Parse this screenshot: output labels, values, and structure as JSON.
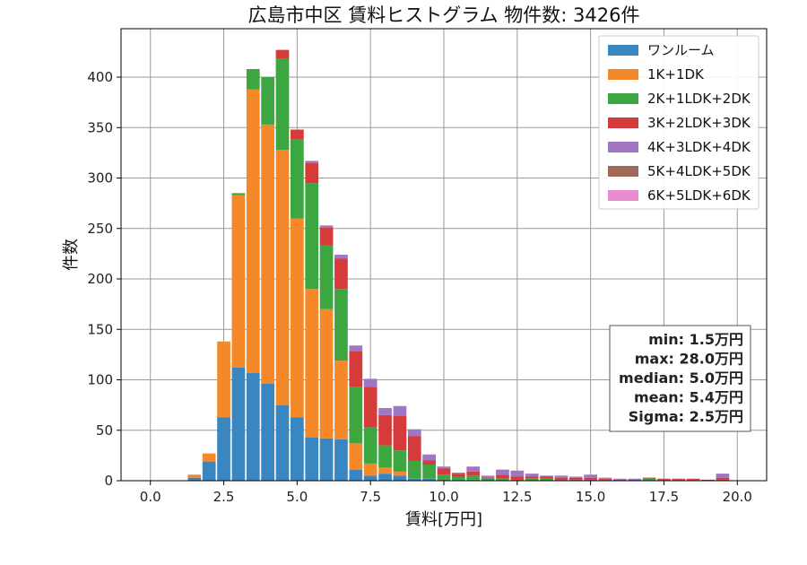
{
  "chart_data": {
    "type": "bar",
    "stacked": true,
    "title": "広島市中区 賃料ヒストグラム 物件数: 3426件",
    "xlabel": "賃料[万円]",
    "ylabel": "件数",
    "xlim": [
      -1,
      21
    ],
    "ylim": [
      0,
      448
    ],
    "x_ticks": [
      0.0,
      2.5,
      5.0,
      7.5,
      10.0,
      12.5,
      15.0,
      17.5,
      20.0
    ],
    "x_tick_labels": [
      "0.0",
      "2.5",
      "5.0",
      "7.5",
      "10.0",
      "12.5",
      "15.0",
      "17.5",
      "20.0"
    ],
    "y_ticks": [
      0,
      50,
      100,
      150,
      200,
      250,
      300,
      350,
      400
    ],
    "y_tick_labels": [
      "0",
      "50",
      "100",
      "150",
      "200",
      "250",
      "300",
      "350",
      "400"
    ],
    "grid": true,
    "legend_position": "top-right",
    "bin_width": 0.5,
    "x": [
      1.5,
      2.0,
      2.5,
      3.0,
      3.5,
      4.0,
      4.5,
      5.0,
      5.5,
      6.0,
      6.5,
      7.0,
      7.5,
      8.0,
      8.5,
      9.0,
      9.5,
      10.0,
      10.5,
      11.0,
      11.5,
      12.0,
      12.5,
      13.0,
      13.5,
      14.0,
      14.5,
      15.0,
      15.5,
      16.0,
      16.5,
      17.0,
      17.5,
      18.0,
      18.5,
      19.0,
      19.5
    ],
    "series": [
      {
        "name": "ワンルーム",
        "color": "#3a86c0",
        "values": [
          3,
          19,
          63,
          112,
          107,
          96,
          75,
          63,
          43,
          42,
          41,
          11,
          5,
          7,
          5,
          2,
          2,
          1,
          1,
          1,
          0,
          0,
          0,
          0,
          0,
          0,
          0,
          0,
          0,
          0,
          0,
          0,
          0,
          0,
          0,
          0,
          0
        ]
      },
      {
        "name": "1K+1DK",
        "color": "#f5892a",
        "values": [
          3,
          8,
          75,
          171,
          281,
          257,
          253,
          197,
          147,
          128,
          78,
          26,
          12,
          6,
          4,
          0,
          0,
          0,
          0,
          0,
          0,
          0,
          0,
          0,
          0,
          0,
          0,
          0,
          0,
          0,
          0,
          0,
          0,
          0,
          0,
          0,
          0
        ]
      },
      {
        "name": "2K+1LDK+2DK",
        "color": "#3ca641",
        "values": [
          0,
          0,
          0,
          2,
          20,
          47,
          90,
          78,
          105,
          63,
          71,
          56,
          36,
          22,
          21,
          18,
          14,
          5,
          3,
          4,
          2,
          2,
          1,
          2,
          2,
          1,
          1,
          1,
          1,
          0,
          0,
          2,
          1,
          1,
          1,
          0,
          1
        ]
      },
      {
        "name": "3K+2LDK+3DK",
        "color": "#d63b3b",
        "values": [
          0,
          0,
          0,
          0,
          0,
          0,
          9,
          10,
          20,
          18,
          30,
          35,
          40,
          30,
          34,
          24,
          4,
          6,
          3,
          4,
          1,
          4,
          3,
          2,
          2,
          2,
          2,
          2,
          1,
          1,
          1,
          1,
          1,
          1,
          1,
          1,
          2
        ]
      },
      {
        "name": "4K+3LDK+4DK",
        "color": "#a075c3",
        "values": [
          0,
          0,
          0,
          0,
          0,
          0,
          0,
          0,
          2,
          2,
          4,
          6,
          8,
          7,
          10,
          7,
          6,
          2,
          1,
          5,
          2,
          5,
          6,
          3,
          1,
          2,
          1,
          3,
          1,
          1,
          1,
          0,
          0,
          0,
          0,
          0,
          4
        ]
      },
      {
        "name": "5K+4LDK+5DK",
        "color": "#9e6a5a",
        "values": [
          0,
          0,
          0,
          0,
          0,
          0,
          0,
          0,
          0,
          0,
          0,
          0,
          0,
          0,
          0,
          0,
          0,
          0,
          0,
          0,
          0,
          0,
          0,
          0,
          0,
          0,
          0,
          0,
          0,
          0,
          0,
          0,
          0,
          0,
          0,
          0,
          0
        ]
      },
      {
        "name": "6K+5LDK+6DK",
        "color": "#e98bcf",
        "values": [
          0,
          0,
          0,
          0,
          0,
          0,
          0,
          0,
          0,
          0,
          0,
          0,
          0,
          0,
          0,
          0,
          0,
          0,
          0,
          0,
          0,
          0,
          0,
          0,
          0,
          0,
          0,
          0,
          0,
          0,
          0,
          0,
          0,
          0,
          0,
          0,
          0
        ]
      }
    ],
    "stats": {
      "lines": [
        "min: 1.5万円",
        "max: 28.0万円",
        "median: 5.0万円",
        "mean: 5.4万円",
        "Sigma: 2.5万円"
      ]
    }
  }
}
